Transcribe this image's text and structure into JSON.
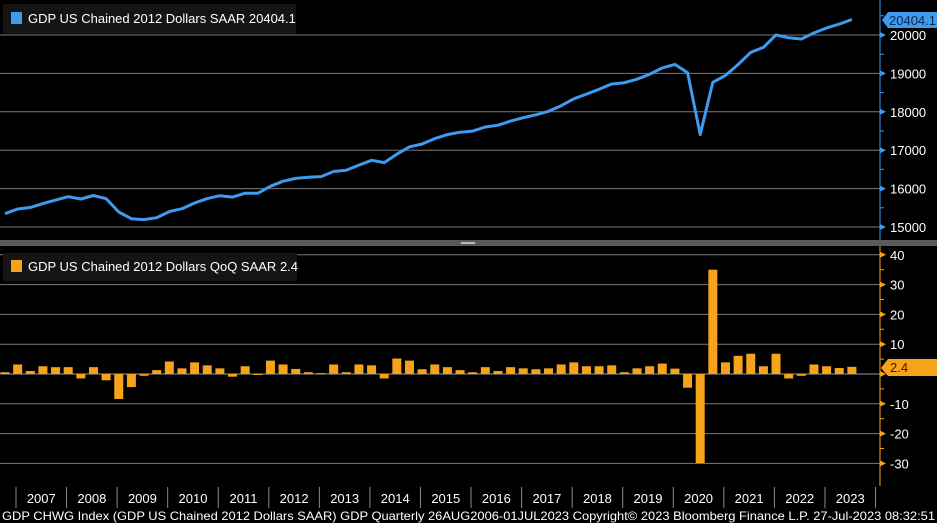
{
  "chart_data": [
    {
      "type": "line",
      "legend": "GDP US Chained 2012 Dollars SAAR",
      "last_value": "20404.1",
      "color": "#3d9bf0",
      "ylim": [
        14700,
        20600
      ],
      "yticks": [
        "15000",
        "16000",
        "17000",
        "18000",
        "19000",
        "20000"
      ],
      "grid": true,
      "axis_position": "right",
      "x": [
        "2006Q3",
        "2006Q4",
        "2007Q1",
        "2007Q2",
        "2007Q3",
        "2007Q4",
        "2008Q1",
        "2008Q2",
        "2008Q3",
        "2008Q4",
        "2009Q1",
        "2009Q2",
        "2009Q3",
        "2009Q4",
        "2010Q1",
        "2010Q2",
        "2010Q3",
        "2010Q4",
        "2011Q1",
        "2011Q2",
        "2011Q3",
        "2011Q4",
        "2012Q1",
        "2012Q2",
        "2012Q3",
        "2012Q4",
        "2013Q1",
        "2013Q2",
        "2013Q3",
        "2013Q4",
        "2014Q1",
        "2014Q2",
        "2014Q3",
        "2014Q4",
        "2015Q1",
        "2015Q2",
        "2015Q3",
        "2015Q4",
        "2016Q1",
        "2016Q2",
        "2016Q3",
        "2016Q4",
        "2017Q1",
        "2017Q2",
        "2017Q3",
        "2017Q4",
        "2018Q1",
        "2018Q2",
        "2018Q3",
        "2018Q4",
        "2019Q1",
        "2019Q2",
        "2019Q3",
        "2019Q4",
        "2020Q1",
        "2020Q2",
        "2020Q3",
        "2020Q4",
        "2021Q1",
        "2021Q2",
        "2021Q3",
        "2021Q4",
        "2022Q1",
        "2022Q2",
        "2022Q3",
        "2022Q4",
        "2023Q1",
        "2023Q2"
      ],
      "values": [
        15347,
        15470,
        15509,
        15610,
        15700,
        15790,
        15730,
        15820,
        15736,
        15391,
        15217,
        15193,
        15243,
        15402,
        15476,
        15626,
        15739,
        15814,
        15778,
        15881,
        15877,
        16059,
        16192,
        16266,
        16294,
        16312,
        16446,
        16476,
        16611,
        16736,
        16676,
        16896,
        17089,
        17162,
        17303,
        17406,
        17468,
        17498,
        17604,
        17652,
        17758,
        17847,
        17922,
        18012,
        18159,
        18339,
        18462,
        18586,
        18723,
        18757,
        18849,
        18976,
        19144,
        19235,
        19017,
        17405,
        18768,
        18949,
        19231,
        19550,
        19676,
        20002,
        19927,
        19897,
        20054,
        20183,
        20283,
        20404.1
      ]
    },
    {
      "type": "bar",
      "legend": "GDP US Chained 2012 Dollars QoQ SAAR",
      "last_value": "2.4",
      "color": "#f7a21b",
      "ylim": [
        -33,
        42
      ],
      "yticks": [
        "-30",
        "-20",
        "-10",
        "0",
        "10",
        "20",
        "30",
        "40"
      ],
      "grid": true,
      "axis_position": "right",
      "values": [
        0.6,
        3.2,
        1.0,
        2.6,
        2.3,
        2.3,
        -1.5,
        2.3,
        -2.1,
        -8.4,
        -4.4,
        -0.6,
        1.3,
        4.2,
        1.9,
        3.9,
        2.9,
        1.9,
        -0.9,
        2.6,
        -0.1,
        4.5,
        3.2,
        1.7,
        0.6,
        0.3,
        3.2,
        0.6,
        3.2,
        2.9,
        -1.5,
        5.2,
        4.5,
        1.6,
        3.2,
        2.3,
        1.3,
        0.6,
        2.3,
        1.0,
        2.3,
        1.9,
        1.6,
        1.9,
        3.2,
        3.9,
        2.6,
        2.6,
        2.9,
        0.6,
        1.9,
        2.6,
        3.5,
        1.8,
        -4.6,
        -29.9,
        35.0,
        3.9,
        6.1,
        6.8,
        2.6,
        6.8,
        -1.5,
        -0.6,
        3.2,
        2.6,
        2.0,
        2.4
      ]
    }
  ],
  "x_axis": {
    "years": [
      "2007",
      "2008",
      "2009",
      "2010",
      "2011",
      "2012",
      "2013",
      "2014",
      "2015",
      "2016",
      "2017",
      "2018",
      "2019",
      "2020",
      "2021",
      "2022",
      "2023"
    ]
  },
  "footer": "GDP CHWG Index (GDP US Chained 2012 Dollars SAAR) GDP  Quarterly 26AUG2006-01JUL2023 Copyright© 2023 Bloomberg Finance L.P. 27-Jul-2023 08:32:51"
}
